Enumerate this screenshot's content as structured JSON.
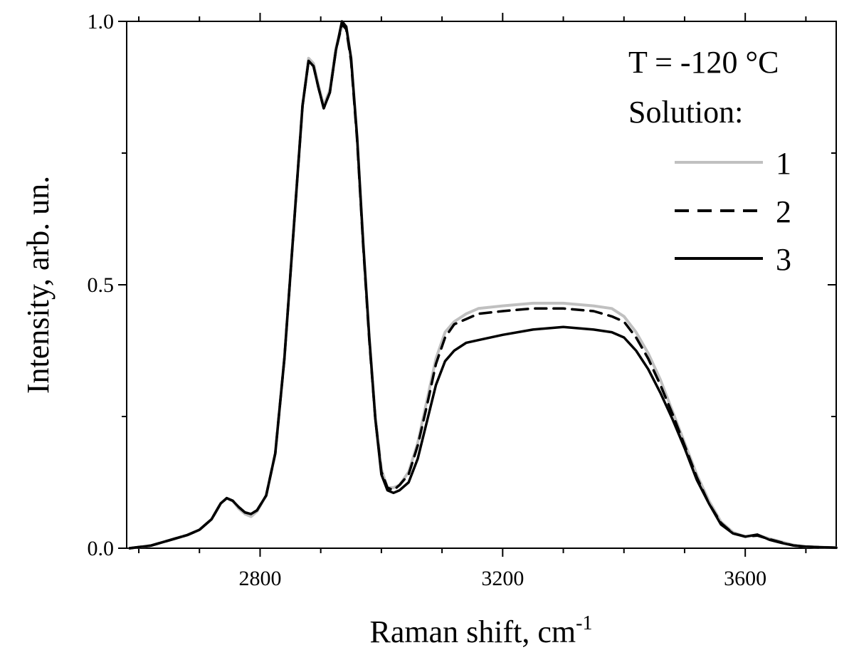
{
  "chart_data": {
    "type": "line",
    "xlabel": "Raman shift, cm",
    "xlabel_sup": "-1",
    "ylabel": "Intensity, arb. un.",
    "xlim": [
      2580,
      3750
    ],
    "ylim": [
      0.0,
      1.0
    ],
    "x_ticks": [
      2800,
      3200,
      3600
    ],
    "x_tick_labels": [
      "2800",
      "3200",
      "3600"
    ],
    "y_ticks": [
      0.0,
      0.5,
      1.0
    ],
    "y_tick_labels": [
      "0.0",
      "0.5",
      "1.0"
    ],
    "annotations": [
      "T = -120 °C",
      "Solution:"
    ],
    "legend_position": "top-right",
    "series": [
      {
        "name": "1",
        "color": "#c0c0c0",
        "dash": "solid",
        "x": [
          2585,
          2620,
          2650,
          2680,
          2700,
          2720,
          2735,
          2745,
          2755,
          2765,
          2775,
          2785,
          2795,
          2810,
          2825,
          2840,
          2850,
          2860,
          2870,
          2880,
          2888,
          2896,
          2905,
          2915,
          2925,
          2935,
          2942,
          2950,
          2960,
          2970,
          2980,
          2990,
          3000,
          3010,
          3020,
          3030,
          3045,
          3060,
          3075,
          3090,
          3105,
          3120,
          3140,
          3160,
          3200,
          3250,
          3300,
          3350,
          3380,
          3400,
          3420,
          3440,
          3460,
          3480,
          3500,
          3520,
          3540,
          3560,
          3580,
          3600,
          3620,
          3640,
          3660,
          3680,
          3700,
          3720,
          3750
        ],
        "y": [
          0.0,
          0.005,
          0.015,
          0.025,
          0.035,
          0.055,
          0.085,
          0.095,
          0.09,
          0.075,
          0.065,
          0.06,
          0.07,
          0.1,
          0.18,
          0.36,
          0.52,
          0.68,
          0.84,
          0.93,
          0.92,
          0.88,
          0.84,
          0.87,
          0.95,
          0.99,
          0.99,
          0.93,
          0.78,
          0.58,
          0.4,
          0.25,
          0.15,
          0.115,
          0.115,
          0.12,
          0.145,
          0.2,
          0.28,
          0.36,
          0.41,
          0.43,
          0.445,
          0.455,
          0.46,
          0.465,
          0.465,
          0.46,
          0.455,
          0.44,
          0.41,
          0.37,
          0.32,
          0.26,
          0.2,
          0.14,
          0.09,
          0.05,
          0.03,
          0.022,
          0.025,
          0.018,
          0.012,
          0.006,
          0.003,
          0.002,
          0.001
        ]
      },
      {
        "name": "2",
        "color": "#000000",
        "dash": "dashed",
        "x": [
          2585,
          2620,
          2650,
          2680,
          2700,
          2720,
          2735,
          2745,
          2755,
          2765,
          2775,
          2785,
          2795,
          2810,
          2825,
          2840,
          2850,
          2860,
          2870,
          2880,
          2888,
          2896,
          2905,
          2915,
          2925,
          2935,
          2942,
          2950,
          2960,
          2970,
          2980,
          2990,
          3000,
          3010,
          3020,
          3030,
          3045,
          3060,
          3075,
          3090,
          3105,
          3120,
          3140,
          3160,
          3200,
          3250,
          3300,
          3350,
          3380,
          3400,
          3420,
          3440,
          3460,
          3480,
          3500,
          3520,
          3540,
          3560,
          3580,
          3600,
          3620,
          3640,
          3660,
          3680,
          3700,
          3720,
          3750
        ],
        "y": [
          0.0,
          0.005,
          0.015,
          0.025,
          0.035,
          0.055,
          0.085,
          0.095,
          0.09,
          0.078,
          0.068,
          0.065,
          0.072,
          0.1,
          0.18,
          0.36,
          0.52,
          0.68,
          0.84,
          0.925,
          0.915,
          0.875,
          0.835,
          0.865,
          0.945,
          0.995,
          0.985,
          0.925,
          0.775,
          0.575,
          0.395,
          0.245,
          0.145,
          0.115,
          0.11,
          0.12,
          0.14,
          0.195,
          0.27,
          0.35,
          0.4,
          0.425,
          0.435,
          0.445,
          0.45,
          0.455,
          0.455,
          0.45,
          0.44,
          0.43,
          0.4,
          0.36,
          0.31,
          0.255,
          0.195,
          0.135,
          0.085,
          0.048,
          0.028,
          0.022,
          0.024,
          0.017,
          0.011,
          0.005,
          0.003,
          0.002,
          0.001
        ]
      },
      {
        "name": "3",
        "color": "#000000",
        "dash": "solid",
        "x": [
          2585,
          2620,
          2650,
          2680,
          2700,
          2720,
          2735,
          2745,
          2755,
          2765,
          2775,
          2785,
          2795,
          2810,
          2825,
          2840,
          2850,
          2860,
          2870,
          2880,
          2888,
          2896,
          2905,
          2915,
          2925,
          2935,
          2942,
          2950,
          2960,
          2970,
          2980,
          2990,
          3000,
          3010,
          3020,
          3030,
          3045,
          3060,
          3075,
          3090,
          3105,
          3120,
          3140,
          3160,
          3200,
          3250,
          3300,
          3350,
          3380,
          3400,
          3420,
          3440,
          3460,
          3480,
          3500,
          3520,
          3540,
          3560,
          3580,
          3600,
          3620,
          3640,
          3660,
          3680,
          3700,
          3720,
          3750
        ],
        "y": [
          0.0,
          0.005,
          0.015,
          0.025,
          0.035,
          0.055,
          0.085,
          0.095,
          0.09,
          0.078,
          0.068,
          0.065,
          0.072,
          0.1,
          0.18,
          0.36,
          0.52,
          0.68,
          0.84,
          0.925,
          0.915,
          0.875,
          0.835,
          0.865,
          0.945,
          1.0,
          0.99,
          0.93,
          0.78,
          0.58,
          0.4,
          0.245,
          0.14,
          0.11,
          0.105,
          0.11,
          0.125,
          0.17,
          0.24,
          0.31,
          0.355,
          0.375,
          0.39,
          0.395,
          0.405,
          0.415,
          0.42,
          0.415,
          0.41,
          0.4,
          0.375,
          0.34,
          0.295,
          0.245,
          0.19,
          0.13,
          0.085,
          0.045,
          0.028,
          0.022,
          0.026,
          0.016,
          0.01,
          0.005,
          0.003,
          0.002,
          0.001
        ]
      }
    ]
  }
}
